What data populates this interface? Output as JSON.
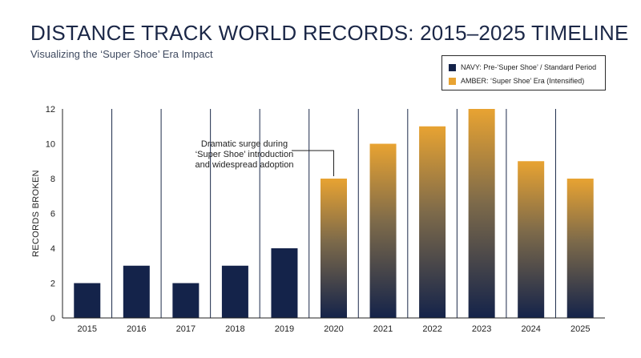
{
  "chart_data": {
    "type": "bar",
    "title": "DISTANCE TRACK WORLD RECORDS: 2015–2025 TIMELINE",
    "subtitle": "Visualizing the ‘Super Shoe’ Era Impact",
    "xlabel": "",
    "ylabel": "RECORDS BROKEN",
    "ylim": [
      0,
      12
    ],
    "yticks": [
      0,
      2,
      4,
      6,
      8,
      10,
      12
    ],
    "categories": [
      "2015",
      "2016",
      "2017",
      "2018",
      "2019",
      "2020",
      "2021",
      "2022",
      "2023",
      "2024",
      "2025"
    ],
    "values": [
      2,
      3,
      2,
      3,
      4,
      8,
      10,
      11,
      12,
      9,
      8
    ],
    "periods": [
      "pre",
      "pre",
      "pre",
      "pre",
      "pre",
      "super",
      "super",
      "super",
      "super",
      "super",
      "super"
    ],
    "grid": "vertical lines between bars",
    "legend_position": "top-right",
    "legend": [
      {
        "key": "pre",
        "label": "NAVY: Pre-‘Super Shoe’ / Standard Period",
        "color": "#14234a"
      },
      {
        "key": "super",
        "label": "AMBER: ‘Super Shoe’ Era (Intensified)",
        "color": "#e8a332"
      }
    ],
    "annotation": {
      "target": "2020",
      "lines": [
        "Dramatic surge during",
        "‘Super Shoe’ introduction",
        "and widespread adoption"
      ]
    },
    "colors": {
      "navy": "#14234a",
      "amber_top": "#e8a332",
      "gradient_bottom": "#14234a",
      "grid": "#1c2a4a",
      "text": "#222222"
    }
  }
}
